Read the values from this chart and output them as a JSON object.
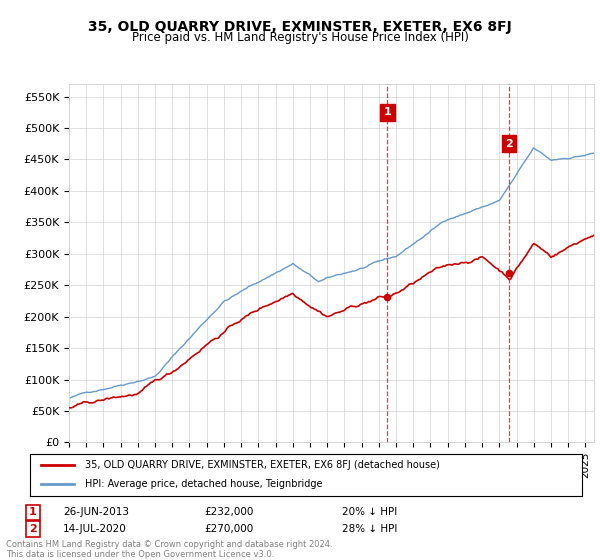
{
  "title": "35, OLD QUARRY DRIVE, EXMINSTER, EXETER, EX6 8FJ",
  "subtitle": "Price paid vs. HM Land Registry's House Price Index (HPI)",
  "ylabel_ticks": [
    "£0",
    "£50K",
    "£100K",
    "£150K",
    "£200K",
    "£250K",
    "£300K",
    "£350K",
    "£400K",
    "£450K",
    "£500K",
    "£550K"
  ],
  "ytick_values": [
    0,
    50000,
    100000,
    150000,
    200000,
    250000,
    300000,
    350000,
    400000,
    450000,
    500000,
    550000
  ],
  "ylim": [
    0,
    570000
  ],
  "legend_line1": "35, OLD QUARRY DRIVE, EXMINSTER, EXETER, EX6 8FJ (detached house)",
  "legend_line2": "HPI: Average price, detached house, Teignbridge",
  "annotation1_date": "26-JUN-2013",
  "annotation1_price": "£232,000",
  "annotation1_pct": "20% ↓ HPI",
  "annotation1_year": 2013.5,
  "annotation1_value": 232000,
  "annotation2_date": "14-JUL-2020",
  "annotation2_price": "£270,000",
  "annotation2_pct": "28% ↓ HPI",
  "annotation2_year": 2020.55,
  "annotation2_value": 270000,
  "red_color": "#cc0000",
  "blue_color": "#6699cc",
  "footer": "Contains HM Land Registry data © Crown copyright and database right 2024.\nThis data is licensed under the Open Government Licence v3.0.",
  "xstart": 1995.0,
  "xend": 2025.5
}
